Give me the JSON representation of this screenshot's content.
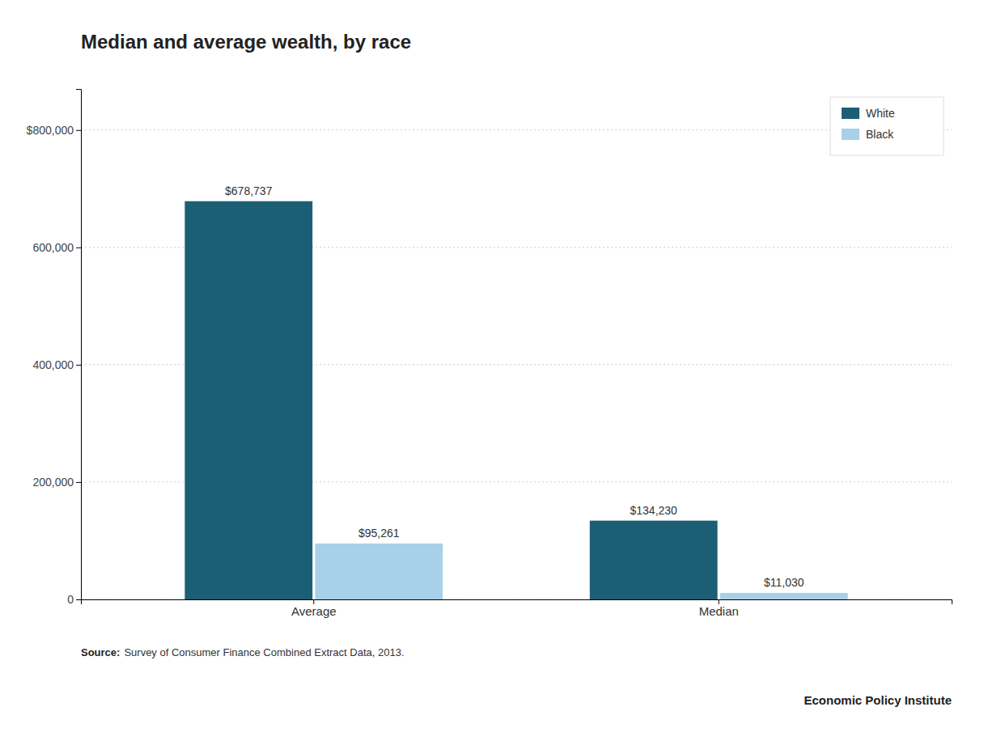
{
  "chart_data": {
    "type": "bar",
    "title": "Median and average wealth, by race",
    "categories": [
      "Average",
      "Median"
    ],
    "series": [
      {
        "name": "White",
        "color": "#1c5f75",
        "values": [
          678737,
          134230
        ],
        "value_labels": [
          "$678,737",
          "$134,230"
        ]
      },
      {
        "name": "Black",
        "color": "#a8d0e8",
        "values": [
          95261,
          11030
        ],
        "value_labels": [
          "$95,261",
          "$11,030"
        ]
      }
    ],
    "ylim": [
      0,
      870000
    ],
    "yticks": [
      0,
      {
        "value": 200000,
        "label": "200,000"
      },
      {
        "value": 400000,
        "label": "400,000"
      },
      {
        "value": 600000,
        "label": "600,000"
      },
      {
        "value": 800000,
        "label": "$800,000"
      }
    ],
    "grid": true,
    "legend": "upper right",
    "data_labels": true,
    "annotations": [
      "Source:",
      "Survey of Consumer Finance Combined Extract Data, 2013.",
      "Economic Policy Institute"
    ]
  }
}
